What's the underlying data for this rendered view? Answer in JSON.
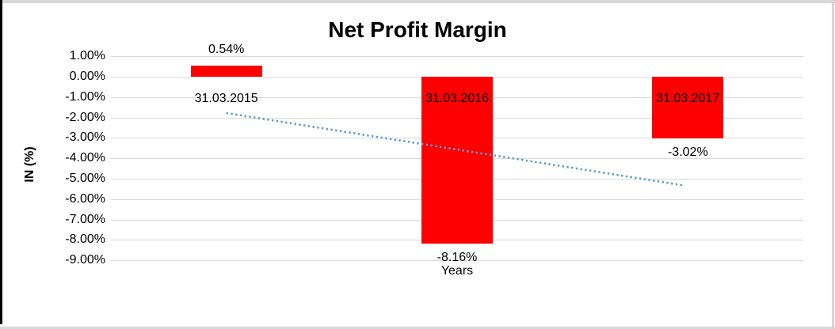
{
  "chart_data": {
    "type": "bar",
    "title": "Net Profit Margin",
    "xlabel": "Years",
    "ylabel": "IN (%)",
    "categories": [
      "31.03.2015",
      "31.03.2016",
      "31.03.2017"
    ],
    "values": [
      0.54,
      -8.16,
      -3.02
    ],
    "data_labels": [
      "0.54%",
      "-8.16%",
      "-3.02%"
    ],
    "y_ticks": [
      {
        "label": "1.00%",
        "value": 1
      },
      {
        "label": "0.00%",
        "value": 0
      },
      {
        "label": "-1.00%",
        "value": -1
      },
      {
        "label": "-2.00%",
        "value": -2
      },
      {
        "label": "-3.00%",
        "value": -3
      },
      {
        "label": "-4.00%",
        "value": -4
      },
      {
        "label": "-5.00%",
        "value": -5
      },
      {
        "label": "-6.00%",
        "value": -6
      },
      {
        "label": "-7.00%",
        "value": -7
      },
      {
        "label": "-8.00%",
        "value": -8
      },
      {
        "label": "-9.00%",
        "value": -9
      }
    ],
    "ylim": [
      -9,
      1
    ],
    "grid": true,
    "legend": false,
    "bar_color": "#FF0000",
    "trendline": {
      "type": "linear",
      "style": "dotted",
      "color": "#5B9BD5",
      "start_pct": -1.78,
      "end_pct": -5.33
    }
  }
}
